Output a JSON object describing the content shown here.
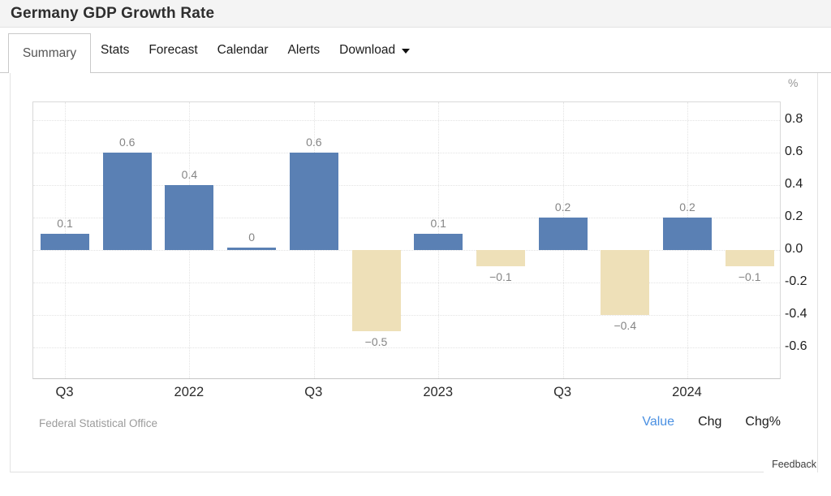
{
  "header": {
    "title": "Germany GDP Growth Rate"
  },
  "tabs": [
    {
      "label": "Summary",
      "active": true,
      "caret": false
    },
    {
      "label": "Stats",
      "active": false,
      "caret": false
    },
    {
      "label": "Forecast",
      "active": false,
      "caret": false
    },
    {
      "label": "Calendar",
      "active": false,
      "caret": false
    },
    {
      "label": "Alerts",
      "active": false,
      "caret": false
    },
    {
      "label": "Download",
      "active": false,
      "caret": true
    }
  ],
  "chart_data": {
    "type": "bar",
    "title": "Germany GDP Growth Rate",
    "ylabel": "%",
    "values": [
      0.1,
      0.6,
      0.4,
      0,
      0.6,
      -0.5,
      0.1,
      -0.1,
      0.2,
      -0.4,
      0.2,
      -0.1
    ],
    "bar_labels": [
      "0.1",
      "0.6",
      "0.4",
      "0",
      "0.6",
      "−0.5",
      "0.1",
      "−0.1",
      "0.2",
      "−0.4",
      "0.2",
      "−0.1"
    ],
    "x_ticks": [
      {
        "label": "Q3",
        "slot": 0
      },
      {
        "label": "2022",
        "slot": 2
      },
      {
        "label": "Q3",
        "slot": 4
      },
      {
        "label": "2023",
        "slot": 6
      },
      {
        "label": "Q3",
        "slot": 8
      },
      {
        "label": "2024",
        "slot": 10
      }
    ],
    "y_ticks": [
      {
        "value": 0.8,
        "label": "0.8"
      },
      {
        "value": 0.6,
        "label": "0.6"
      },
      {
        "value": 0.4,
        "label": "0.4"
      },
      {
        "value": 0.2,
        "label": "0.2"
      },
      {
        "value": 0.0,
        "label": "0.0"
      },
      {
        "value": -0.2,
        "label": "-0.2"
      },
      {
        "value": -0.4,
        "label": "-0.4"
      },
      {
        "value": -0.6,
        "label": "-0.6"
      }
    ],
    "ylim": [
      -0.8,
      0.91
    ],
    "grid": true,
    "legend": false,
    "axis_side": "right",
    "colors": {
      "positive_bar": "#5a80b4",
      "negative_bar": "#eee0b8"
    }
  },
  "footer": {
    "source": "Federal Statistical Office",
    "view_options": [
      {
        "label": "Value",
        "active": true
      },
      {
        "label": "Chg",
        "active": false
      },
      {
        "label": "Chg%",
        "active": false
      }
    ],
    "feedback_label": "Feedback",
    "accent_color": "#4a90e2"
  }
}
